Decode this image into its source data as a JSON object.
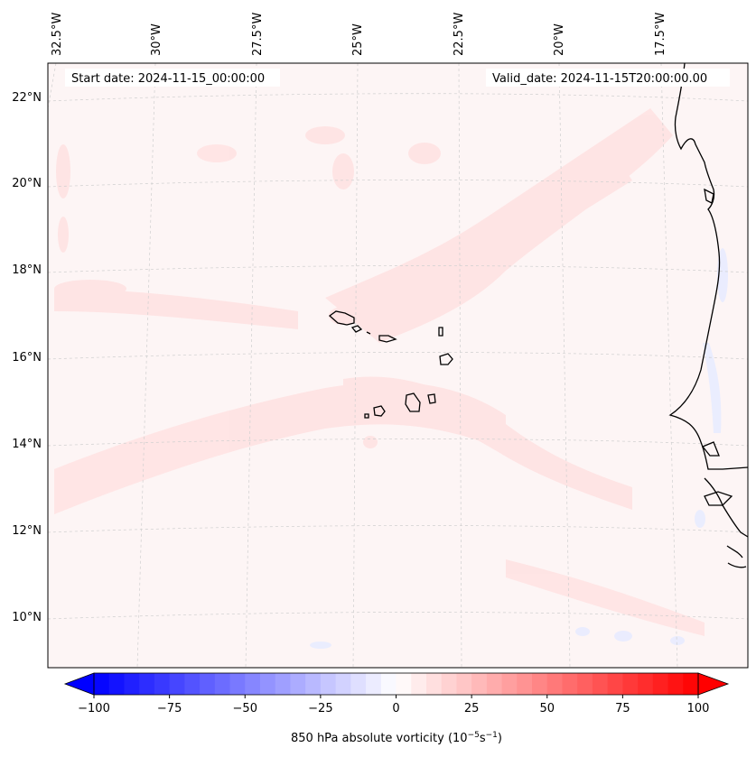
{
  "map": {
    "start_date": "Start date: 2024-11-15_00:00:00",
    "valid_date": "Valid_date: 2024-11-15T20:00:00.00",
    "longitude_labels": [
      "32.5°W",
      "30°W",
      "27.5°W",
      "25°W",
      "22.5°W",
      "20°W",
      "17.5°W"
    ],
    "latitude_labels": [
      "22°N",
      "20°N",
      "18°N",
      "16°N",
      "14°N",
      "12°N",
      "10°N"
    ]
  },
  "colorbar": {
    "ticks": [
      "−100",
      "−75",
      "−50",
      "−25",
      "0",
      "25",
      "50",
      "75",
      "100"
    ],
    "title_prefix": "850 hPa absolute vorticity (10",
    "title_exp1": "−5",
    "title_mid": "s",
    "title_exp2": "−1",
    "title_suffix": ")",
    "range": [
      -100,
      100
    ],
    "levels_step": 5,
    "colors": {
      "min": "#0000ff",
      "mid": "#ffffff",
      "max": "#ff0000"
    }
  },
  "colors": {
    "background": "#fdf5f5",
    "positive_band": "#ffe1e1",
    "negative_patch": "#e6ebff",
    "coastline": "#000000",
    "gridline": "#cfcfcf"
  }
}
